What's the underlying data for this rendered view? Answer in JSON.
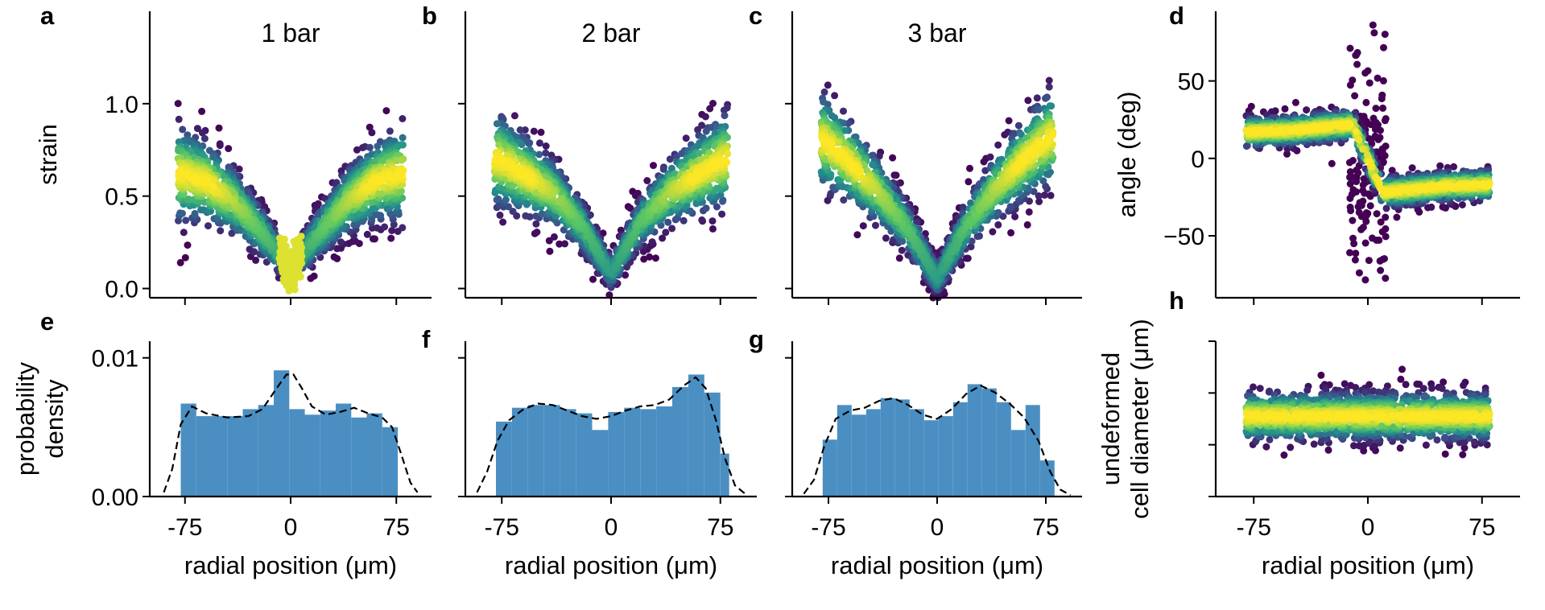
{
  "figure": {
    "panel_labels": [
      "a",
      "b",
      "c",
      "d",
      "e",
      "f",
      "g",
      "h"
    ]
  },
  "colors": {
    "hist_fill": "#4b8fc2",
    "kde_line": "#000000",
    "viridis": [
      "#440154",
      "#3b528b",
      "#21918c",
      "#5ec962",
      "#fde725"
    ]
  },
  "chart_data": [
    {
      "id": "a",
      "type": "scatter",
      "title": "1 bar",
      "xlabel": "",
      "ylabel": "strain",
      "xlim": [
        -100,
        100
      ],
      "ylim": [
        -0.05,
        1.5
      ],
      "x_ticks": [
        -75,
        0,
        75
      ],
      "y_ticks": [
        0.0,
        0.5,
        1.0
      ],
      "y_tick_labels": [
        "0.0",
        "0.5",
        "1.0"
      ],
      "color_by": "point density (viridis)",
      "trend": {
        "x": [
          -78,
          -60,
          -40,
          -20,
          0,
          20,
          40,
          60,
          78
        ],
        "y": [
          0.62,
          0.58,
          0.47,
          0.3,
          0.1,
          0.3,
          0.47,
          0.58,
          0.62
        ]
      }
    },
    {
      "id": "b",
      "type": "scatter",
      "title": "2 bar",
      "xlabel": "",
      "ylabel": "",
      "xlim": [
        -100,
        100
      ],
      "ylim": [
        -0.05,
        1.5
      ],
      "x_ticks": [
        -75,
        0,
        75
      ],
      "y_ticks": [
        0.0,
        0.5,
        1.0
      ],
      "color_by": "point density (viridis)",
      "trend": {
        "x": [
          -78,
          -60,
          -40,
          -20,
          0,
          20,
          40,
          60,
          78
        ],
        "y": [
          0.7,
          0.62,
          0.52,
          0.34,
          0.08,
          0.36,
          0.52,
          0.62,
          0.7
        ]
      }
    },
    {
      "id": "c",
      "type": "scatter",
      "title": "3 bar",
      "xlabel": "",
      "ylabel": "",
      "xlim": [
        -100,
        100
      ],
      "ylim": [
        -0.05,
        1.5
      ],
      "x_ticks": [
        -75,
        0,
        75
      ],
      "y_ticks": [
        0.0,
        0.5,
        1.0
      ],
      "color_by": "point density (viridis)",
      "trend": {
        "x": [
          -78,
          -60,
          -40,
          -20,
          0,
          20,
          40,
          60,
          78
        ],
        "y": [
          0.8,
          0.68,
          0.52,
          0.32,
          0.05,
          0.34,
          0.54,
          0.7,
          0.82
        ]
      }
    },
    {
      "id": "d",
      "type": "scatter",
      "title": "",
      "xlabel": "",
      "ylabel": "angle (deg)",
      "xlim": [
        -100,
        100
      ],
      "ylim": [
        -90,
        95
      ],
      "x_ticks": [
        -75,
        0,
        75
      ],
      "y_ticks": [
        -50,
        0,
        50
      ],
      "y_tick_labels": [
        "−50",
        "0",
        "50"
      ],
      "color_by": "point density (viridis)",
      "trend": {
        "x": [
          -78,
          -50,
          -10,
          10,
          50,
          78
        ],
        "y": [
          17,
          18,
          22,
          -22,
          -18,
          -17
        ]
      }
    },
    {
      "id": "e",
      "type": "bar",
      "title": "",
      "xlabel": "radial position (μm)",
      "ylabel": "probability\ndensity",
      "xlim": [
        -100,
        100
      ],
      "ylim": [
        0,
        0.0112
      ],
      "x_ticks": [
        -75,
        0,
        75
      ],
      "y_ticks": [
        0.0,
        0.01
      ],
      "y_tick_labels": [
        "0.00",
        "0.01"
      ],
      "x_tick_labels": [
        "-75",
        "0",
        "75"
      ],
      "bin_edges": [
        -78,
        -67,
        -56,
        -45,
        -34,
        -23,
        -12,
        -1,
        10,
        21,
        32,
        43,
        54,
        65,
        76
      ],
      "values": [
        0.0067,
        0.0058,
        0.0058,
        0.0058,
        0.0063,
        0.0066,
        0.0091,
        0.0063,
        0.0059,
        0.0062,
        0.0067,
        0.0057,
        0.006,
        0.005
      ],
      "kde": {
        "x": [
          -90,
          -84,
          -78,
          -70,
          -60,
          -45,
          -30,
          -20,
          -10,
          -3,
          2,
          8,
          15,
          25,
          35,
          45,
          55,
          65,
          72,
          78,
          85,
          90
        ],
        "y": [
          0.0003,
          0.002,
          0.0052,
          0.0065,
          0.006,
          0.0057,
          0.0058,
          0.0063,
          0.0078,
          0.0088,
          0.0088,
          0.0078,
          0.0065,
          0.0059,
          0.0061,
          0.0064,
          0.006,
          0.0057,
          0.005,
          0.0032,
          0.001,
          0.0003
        ]
      }
    },
    {
      "id": "f",
      "type": "bar",
      "title": "",
      "xlabel": "radial position (μm)",
      "ylabel": "",
      "xlim": [
        -100,
        100
      ],
      "ylim": [
        0,
        0.0112
      ],
      "x_ticks": [
        -75,
        0,
        75
      ],
      "y_ticks": [
        0.0,
        0.01
      ],
      "x_tick_labels": [
        "-75",
        "0",
        "75"
      ],
      "bin_edges": [
        -79,
        -68,
        -57,
        -46,
        -35,
        -24,
        -13,
        -2,
        9,
        20,
        31,
        42,
        53,
        64,
        75,
        81
      ],
      "values": [
        0.0054,
        0.0064,
        0.0066,
        0.0066,
        0.0063,
        0.006,
        0.0048,
        0.0061,
        0.0064,
        0.0063,
        0.0065,
        0.0079,
        0.0088,
        0.0075,
        0.0031
      ],
      "kde": {
        "x": [
          -92,
          -85,
          -78,
          -70,
          -60,
          -50,
          -40,
          -30,
          -20,
          -10,
          0,
          10,
          20,
          30,
          40,
          50,
          58,
          65,
          72,
          78,
          85,
          92
        ],
        "y": [
          0.0003,
          0.0018,
          0.004,
          0.0055,
          0.0063,
          0.0067,
          0.0066,
          0.0062,
          0.0058,
          0.0056,
          0.0058,
          0.0062,
          0.0065,
          0.0066,
          0.007,
          0.008,
          0.0086,
          0.0078,
          0.0055,
          0.0028,
          0.0008,
          0.0002
        ]
      }
    },
    {
      "id": "g",
      "type": "bar",
      "title": "",
      "xlabel": "radial position (μm)",
      "ylabel": "",
      "xlim": [
        -100,
        100
      ],
      "ylim": [
        0,
        0.0112
      ],
      "x_ticks": [
        -75,
        0,
        75
      ],
      "y_ticks": [
        0.0,
        0.01
      ],
      "x_tick_labels": [
        "-75",
        "0",
        "75"
      ],
      "bin_edges": [
        -79,
        -69,
        -59,
        -49,
        -39,
        -29,
        -19,
        -9,
        1,
        11,
        21,
        31,
        41,
        51,
        61,
        71,
        81
      ],
      "values": [
        0.0041,
        0.0066,
        0.0059,
        0.0063,
        0.0071,
        0.007,
        0.0063,
        0.0055,
        0.0058,
        0.0068,
        0.0081,
        0.0078,
        0.0068,
        0.0048,
        0.0066,
        0.0026
      ],
      "kde": {
        "x": [
          -92,
          -85,
          -78,
          -70,
          -60,
          -50,
          -40,
          -30,
          -20,
          -10,
          0,
          10,
          20,
          30,
          40,
          50,
          60,
          70,
          78,
          85,
          92
        ],
        "y": [
          0.0002,
          0.0012,
          0.0036,
          0.0056,
          0.0062,
          0.0064,
          0.0069,
          0.0071,
          0.0066,
          0.0059,
          0.0056,
          0.0063,
          0.0074,
          0.008,
          0.0075,
          0.0067,
          0.0057,
          0.004,
          0.0018,
          0.0005,
          0.0001
        ]
      }
    },
    {
      "id": "h",
      "type": "scatter",
      "title": "",
      "xlabel": "radial position (μm)",
      "ylabel": "undeformed\ncell diameter (μm)",
      "xlim": [
        -100,
        100
      ],
      "ylim": [
        0,
        30
      ],
      "x_ticks": [
        -75,
        0,
        75
      ],
      "y_ticks": [
        0,
        10,
        20,
        30
      ],
      "x_tick_labels": [
        "-75",
        "0",
        "75"
      ],
      "color_by": "point density (viridis)",
      "trend": {
        "x": [
          -78,
          -40,
          0,
          40,
          78
        ],
        "y": [
          15.5,
          15.5,
          15.5,
          15.5,
          15.5
        ]
      }
    }
  ]
}
